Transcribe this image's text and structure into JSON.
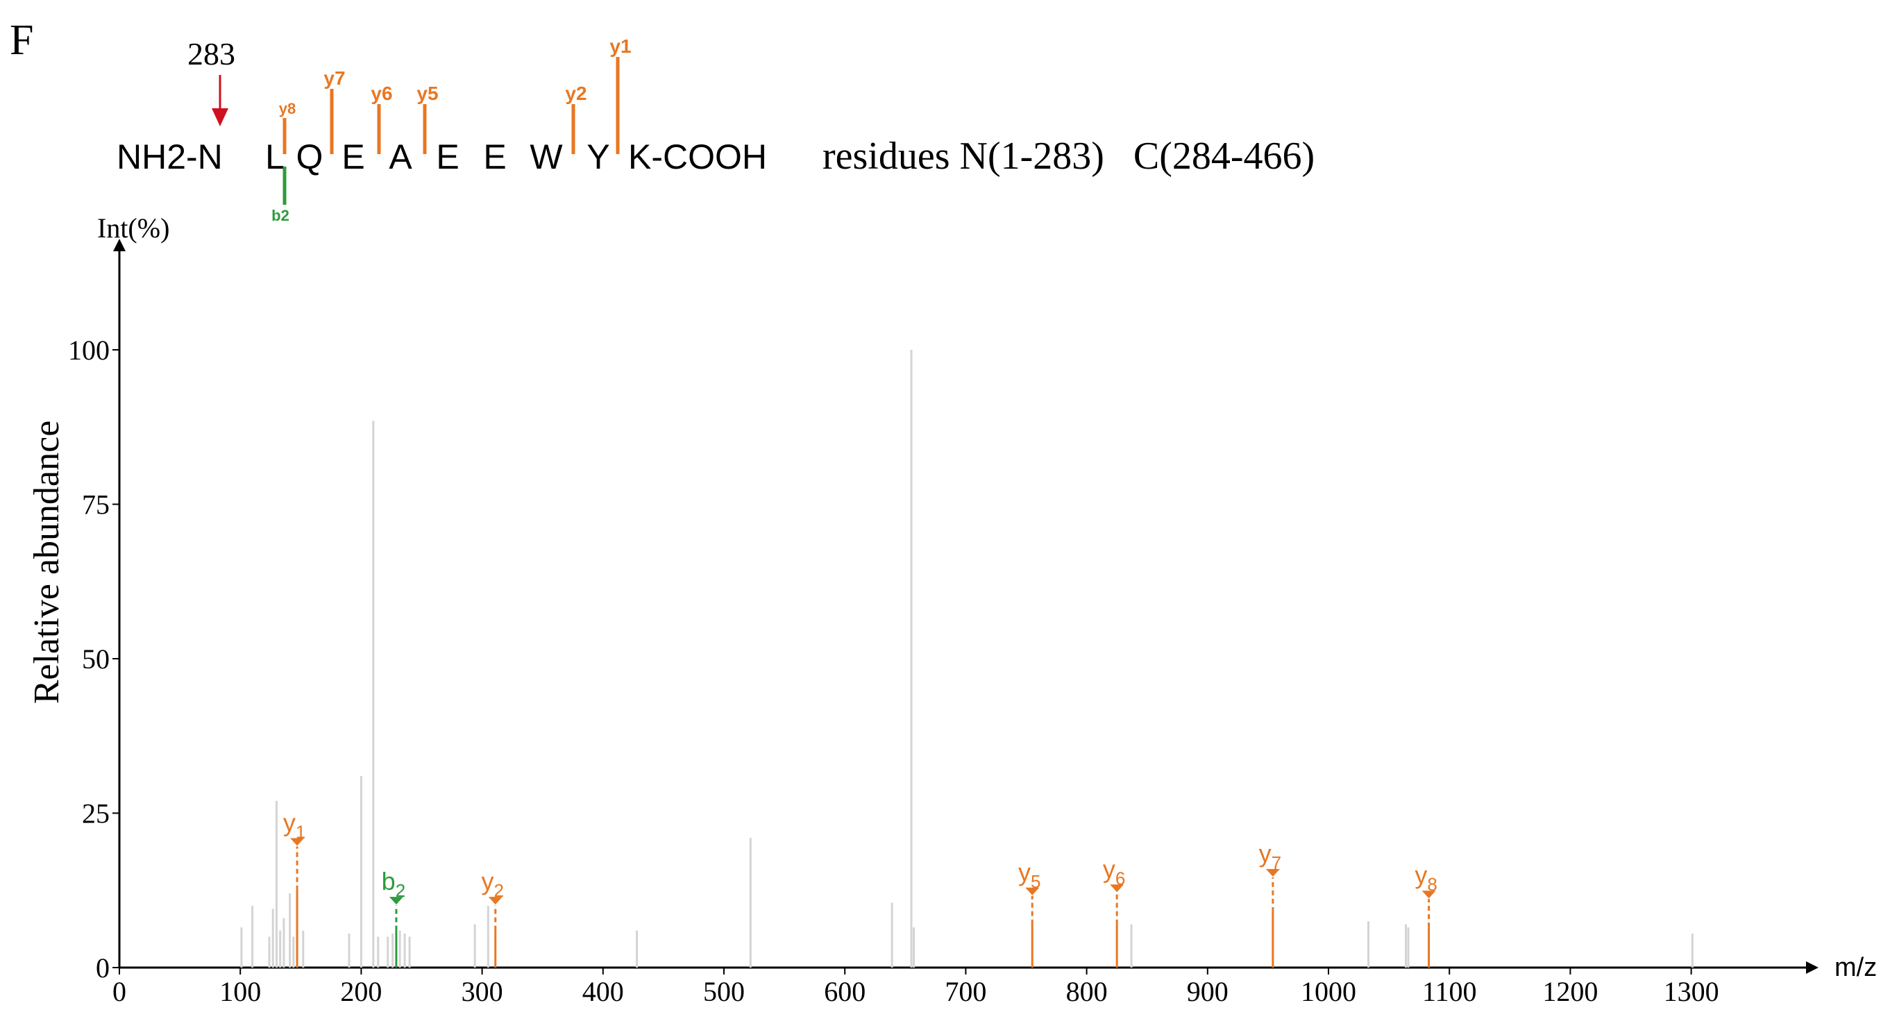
{
  "panel_label": "F",
  "peptide": {
    "prefix": "NH2-N",
    "residues": [
      "L",
      "Q",
      "E",
      "A",
      "E",
      "E",
      "W",
      "Y"
    ],
    "suffix": "K-COOH",
    "cleavage_site_label": "283",
    "residues_note": "residues N(1-283)   C(284-466)",
    "y_fragment_marks": [
      {
        "label": "y8",
        "after_residue": 0,
        "level": 1
      },
      {
        "label": "y7",
        "after_residue": 1,
        "level": 3
      },
      {
        "label": "y6",
        "after_residue": 2,
        "level": 2
      },
      {
        "label": "y5",
        "after_residue": 3,
        "level": 2
      },
      {
        "label": "y2",
        "after_residue": 6,
        "level": 2
      },
      {
        "label": "y1",
        "after_residue": 7,
        "level": 4
      }
    ],
    "b_fragment_marks": [
      {
        "label": "b2",
        "after_residue": 0
      }
    ]
  },
  "colors": {
    "y_ion": "#E87722",
    "b_ion": "#2E9B3E",
    "unassigned_peak": "#d4d4d4",
    "cleavage_arrow": "#D0101E",
    "axis": "#000000"
  },
  "chart_data": {
    "type": "bar",
    "subtype": "mass_spectrum",
    "xlabel": "m/z",
    "ylabel": "Relative abundance",
    "y_axis_title": "Int(%)",
    "xlim": [
      0,
      1400
    ],
    "ylim": [
      0,
      112
    ],
    "x_ticks": [
      0,
      100,
      200,
      300,
      400,
      500,
      600,
      700,
      800,
      900,
      1000,
      1100,
      1200,
      1300
    ],
    "y_ticks": [
      0,
      25,
      50,
      75,
      100
    ],
    "grid": false,
    "unassigned_peaks": [
      {
        "x": 101,
        "y": 6.5
      },
      {
        "x": 110,
        "y": 10
      },
      {
        "x": 124,
        "y": 5
      },
      {
        "x": 127,
        "y": 9.5
      },
      {
        "x": 130,
        "y": 27
      },
      {
        "x": 133,
        "y": 6
      },
      {
        "x": 136,
        "y": 8
      },
      {
        "x": 141,
        "y": 12
      },
      {
        "x": 144,
        "y": 5
      },
      {
        "x": 152,
        "y": 6
      },
      {
        "x": 190,
        "y": 5.5
      },
      {
        "x": 200,
        "y": 31
      },
      {
        "x": 210,
        "y": 88.5
      },
      {
        "x": 214,
        "y": 5
      },
      {
        "x": 222,
        "y": 5
      },
      {
        "x": 226,
        "y": 5.5
      },
      {
        "x": 232,
        "y": 6
      },
      {
        "x": 236,
        "y": 5.5
      },
      {
        "x": 240,
        "y": 5
      },
      {
        "x": 294,
        "y": 7
      },
      {
        "x": 305,
        "y": 10
      },
      {
        "x": 428,
        "y": 6
      },
      {
        "x": 522,
        "y": 21
      },
      {
        "x": 639,
        "y": 10.5
      },
      {
        "x": 655,
        "y": 100
      },
      {
        "x": 657,
        "y": 6.5
      },
      {
        "x": 837,
        "y": 7
      },
      {
        "x": 1033,
        "y": 7.5
      },
      {
        "x": 1064,
        "y": 7
      },
      {
        "x": 1066,
        "y": 6.5
      },
      {
        "x": 1301,
        "y": 5.5
      }
    ],
    "assigned_peaks": [
      {
        "label": "y",
        "sub": "1",
        "ion": "y",
        "x": 147,
        "y": 12.5,
        "marker_y": 20.5
      },
      {
        "label": "b",
        "sub": "2",
        "ion": "b",
        "x": 229,
        "y": 6,
        "marker_y": 11
      },
      {
        "label": "y",
        "sub": "2",
        "ion": "y",
        "x": 311,
        "y": 6,
        "marker_y": 11
      },
      {
        "label": "y",
        "sub": "5",
        "ion": "y",
        "x": 755,
        "y": 7,
        "marker_y": 12.5
      },
      {
        "label": "y",
        "sub": "6",
        "ion": "y",
        "x": 825,
        "y": 7,
        "marker_y": 13
      },
      {
        "label": "y",
        "sub": "7",
        "ion": "y",
        "x": 954,
        "y": 9,
        "marker_y": 15.5
      },
      {
        "label": "y",
        "sub": "8",
        "ion": "y",
        "x": 1083,
        "y": 6.5,
        "marker_y": 12
      }
    ]
  }
}
